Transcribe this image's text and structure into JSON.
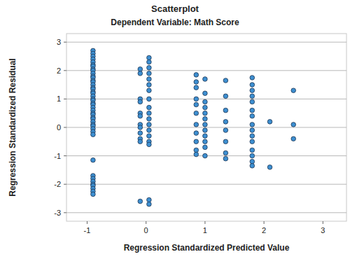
{
  "chart_data": {
    "type": "scatter",
    "title": "Scatterplot",
    "subtitle": "Dependent Variable: Math Score",
    "x_label": "Regression Standardized Predicted Value",
    "y_label": "Regression Standardized Residual",
    "color": "#3d8fd1",
    "marker": "circle",
    "grid": true,
    "xlim": [
      -1.35,
      3.4
    ],
    "ylim": [
      -3.3,
      3.3
    ],
    "xticks": [
      -1,
      0,
      1,
      2,
      3
    ],
    "yticks": [
      -3,
      -2,
      -1,
      0,
      1,
      2,
      3
    ],
    "x": [
      -0.9,
      -0.9,
      -0.9,
      -0.9,
      -0.9,
      -0.9,
      -0.9,
      -0.9,
      -0.9,
      -0.9,
      -0.9,
      -0.9,
      -0.9,
      -0.9,
      -0.9,
      -0.9,
      -0.9,
      -0.9,
      -0.9,
      -0.9,
      -0.9,
      -0.9,
      -0.9,
      -0.9,
      -0.9,
      -0.9,
      -0.9,
      -0.9,
      -0.9,
      -0.9,
      -0.9,
      -0.9,
      -0.9,
      -0.9,
      -0.9,
      -0.9,
      -0.9,
      -0.9,
      -0.9,
      -0.9,
      -0.9,
      -0.9,
      -0.9,
      -0.9,
      -0.9,
      -0.1,
      -0.1,
      -0.1,
      -0.1,
      -0.1,
      -0.1,
      -0.1,
      -0.1,
      -0.1,
      -0.1,
      -0.1,
      -0.1,
      0.05,
      0.05,
      0.05,
      0.05,
      0.05,
      0.05,
      0.05,
      0.05,
      0.05,
      0.05,
      0.05,
      0.05,
      0.05,
      0.05,
      0.05,
      0.05,
      0.05,
      0.05,
      0.85,
      0.85,
      0.85,
      0.85,
      0.85,
      0.85,
      0.85,
      0.85,
      0.85,
      0.85,
      0.85,
      1,
      1,
      1,
      1,
      1,
      1,
      1,
      1,
      1,
      1,
      1,
      1,
      1.35,
      1.35,
      1.35,
      1.35,
      1.35,
      1.35,
      1.35,
      1.35,
      1.8,
      1.8,
      1.8,
      1.8,
      1.8,
      1.8,
      1.8,
      1.8,
      1.8,
      1.8,
      1.8,
      1.8,
      1.8,
      1.8,
      1.8,
      2.1,
      2.1,
      2.5,
      2.5,
      2.5
    ],
    "y": [
      2.7,
      2.6,
      2.5,
      2.4,
      2.3,
      2.2,
      2.15,
      2.05,
      2.0,
      1.9,
      1.8,
      1.75,
      1.65,
      1.6,
      1.5,
      1.4,
      1.35,
      1.25,
      1.2,
      1.1,
      1.0,
      0.95,
      0.85,
      0.8,
      0.7,
      0.6,
      0.5,
      0.45,
      0.35,
      0.3,
      0.2,
      0.1,
      0.05,
      -0.05,
      -0.15,
      -0.25,
      -1.15,
      -1.7,
      -1.8,
      -1.9,
      -2.0,
      -2.05,
      -2.15,
      -2.25,
      -2.35,
      2.05,
      1.9,
      1.0,
      0.9,
      0.5,
      0.4,
      0.1,
      0.0,
      -0.2,
      -0.4,
      -0.5,
      -2.6,
      2.45,
      2.3,
      2.1,
      1.9,
      1.7,
      1.5,
      1.3,
      1.0,
      0.7,
      0.5,
      0.3,
      0.1,
      -0.1,
      -0.3,
      -0.5,
      -0.6,
      -2.55,
      -2.7,
      1.85,
      1.6,
      1.4,
      1.0,
      0.8,
      0.5,
      0.1,
      -0.2,
      -0.5,
      -0.8,
      -0.95,
      1.7,
      1.2,
      0.9,
      0.7,
      0.5,
      0.3,
      0.1,
      -0.1,
      -0.3,
      -0.5,
      -0.7,
      -1.0,
      1.65,
      1.1,
      0.6,
      0.2,
      -0.1,
      -0.5,
      -0.9,
      -1.1,
      1.75,
      1.5,
      1.3,
      1.1,
      0.9,
      0.6,
      0.4,
      0.1,
      -0.1,
      -0.3,
      -0.5,
      -0.8,
      -1.0,
      -1.2,
      -1.35,
      0.2,
      -1.4,
      1.3,
      0.1,
      -0.4
    ]
  }
}
